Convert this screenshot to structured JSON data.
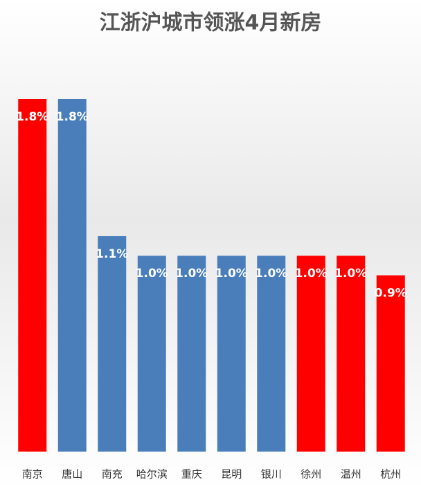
{
  "chart_data": {
    "type": "bar",
    "title": "江浙沪城市领涨4月新房",
    "categories": [
      "南京",
      "唐山",
      "南充",
      "哈尔滨",
      "重庆",
      "昆明",
      "银川",
      "徐州",
      "温州",
      "杭州"
    ],
    "values": [
      1.8,
      1.8,
      1.1,
      1.0,
      1.0,
      1.0,
      1.0,
      1.0,
      1.0,
      0.9
    ],
    "value_labels": [
      "1.8%",
      "1.8%",
      "1.1%",
      "1.0%",
      "1.0%",
      "1.0%",
      "1.0%",
      "1.0%",
      "1.0%",
      "0.9%"
    ],
    "colors": [
      "#ff0000",
      "#4a7ebb",
      "#4a7ebb",
      "#4a7ebb",
      "#4a7ebb",
      "#4a7ebb",
      "#4a7ebb",
      "#ff0000",
      "#ff0000",
      "#ff0000"
    ]
  }
}
